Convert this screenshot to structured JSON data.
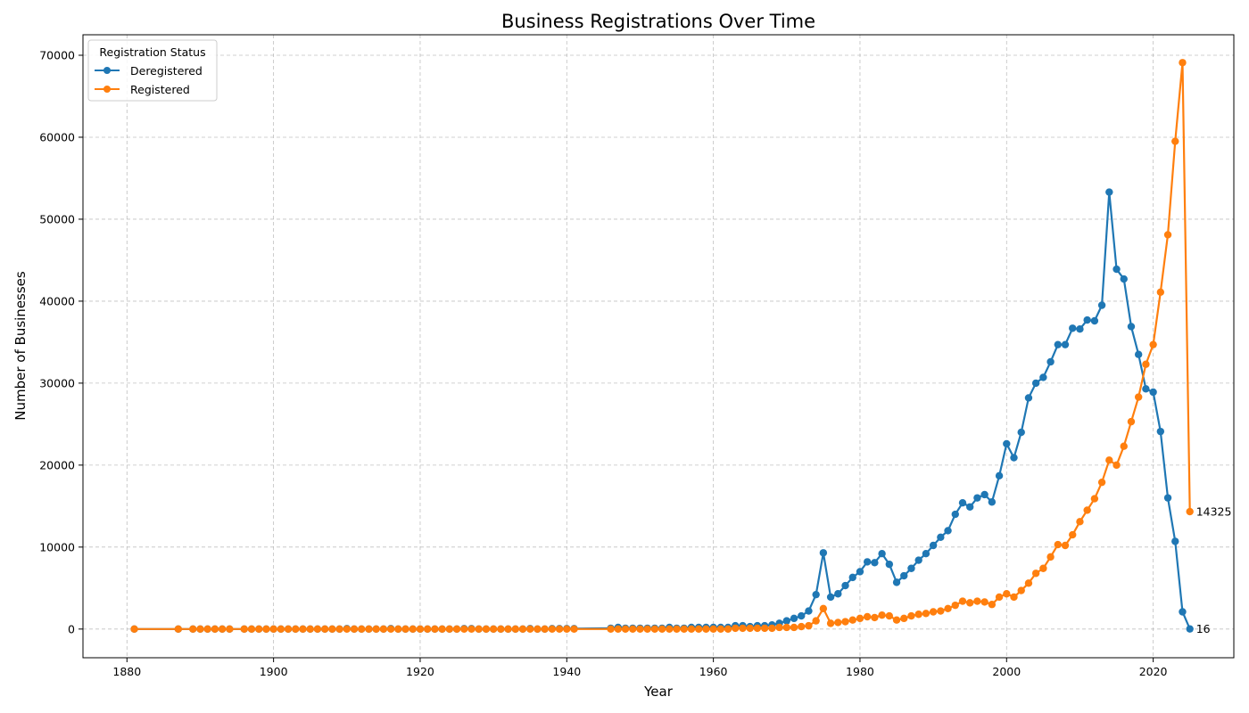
{
  "chart_data": {
    "type": "line",
    "title": "Business Registrations Over Time",
    "xlabel": "Year",
    "ylabel": "Number of Businesses",
    "xlim": [
      1874,
      2031
    ],
    "ylim": [
      -3500,
      72500
    ],
    "xticks": [
      1880,
      1900,
      1920,
      1940,
      1960,
      1980,
      2000,
      2020
    ],
    "yticks": [
      0,
      10000,
      20000,
      30000,
      40000,
      50000,
      60000,
      70000
    ],
    "grid": true,
    "legend": {
      "title": "Registration Status",
      "placement": "top-left"
    },
    "series": [
      {
        "name": "Deregistered",
        "color": "#1f77b4",
        "points": [
          [
            1881,
            0
          ],
          [
            1887,
            0
          ],
          [
            1889,
            0
          ],
          [
            1890,
            0
          ],
          [
            1891,
            0
          ],
          [
            1892,
            0
          ],
          [
            1893,
            0
          ],
          [
            1894,
            0
          ],
          [
            1896,
            0
          ],
          [
            1897,
            0
          ],
          [
            1898,
            0
          ],
          [
            1899,
            0
          ],
          [
            1900,
            0
          ],
          [
            1901,
            0
          ],
          [
            1902,
            0
          ],
          [
            1903,
            0
          ],
          [
            1904,
            0
          ],
          [
            1905,
            0
          ],
          [
            1906,
            0
          ],
          [
            1907,
            0
          ],
          [
            1908,
            0
          ],
          [
            1909,
            0
          ],
          [
            1910,
            50
          ],
          [
            1911,
            0
          ],
          [
            1912,
            0
          ],
          [
            1913,
            0
          ],
          [
            1914,
            0
          ],
          [
            1915,
            0
          ],
          [
            1916,
            50
          ],
          [
            1917,
            0
          ],
          [
            1918,
            0
          ],
          [
            1919,
            0
          ],
          [
            1920,
            0
          ],
          [
            1921,
            0
          ],
          [
            1922,
            0
          ],
          [
            1923,
            0
          ],
          [
            1924,
            0
          ],
          [
            1925,
            0
          ],
          [
            1926,
            50
          ],
          [
            1927,
            50
          ],
          [
            1928,
            0
          ],
          [
            1929,
            0
          ],
          [
            1930,
            0
          ],
          [
            1931,
            0
          ],
          [
            1932,
            0
          ],
          [
            1933,
            0
          ],
          [
            1934,
            0
          ],
          [
            1935,
            50
          ],
          [
            1936,
            0
          ],
          [
            1937,
            0
          ],
          [
            1938,
            50
          ],
          [
            1939,
            50
          ],
          [
            1940,
            50
          ],
          [
            1941,
            50
          ],
          [
            1946,
            100
          ],
          [
            1947,
            200
          ],
          [
            1948,
            100
          ],
          [
            1949,
            100
          ],
          [
            1950,
            100
          ],
          [
            1951,
            100
          ],
          [
            1952,
            100
          ],
          [
            1953,
            100
          ],
          [
            1954,
            200
          ],
          [
            1955,
            100
          ],
          [
            1956,
            100
          ],
          [
            1957,
            200
          ],
          [
            1958,
            200
          ],
          [
            1959,
            200
          ],
          [
            1960,
            200
          ],
          [
            1961,
            200
          ],
          [
            1962,
            200
          ],
          [
            1963,
            400
          ],
          [
            1964,
            400
          ],
          [
            1965,
            300
          ],
          [
            1966,
            400
          ],
          [
            1967,
            400
          ],
          [
            1968,
            500
          ],
          [
            1969,
            700
          ],
          [
            1970,
            1000
          ],
          [
            1971,
            1300
          ],
          [
            1972,
            1600
          ],
          [
            1973,
            2200
          ],
          [
            1974,
            4200
          ],
          [
            1975,
            9300
          ],
          [
            1976,
            3900
          ],
          [
            1977,
            4300
          ],
          [
            1978,
            5300
          ],
          [
            1979,
            6300
          ],
          [
            1980,
            7000
          ],
          [
            1981,
            8200
          ],
          [
            1982,
            8100
          ],
          [
            1983,
            9200
          ],
          [
            1984,
            7900
          ],
          [
            1985,
            5700
          ],
          [
            1986,
            6500
          ],
          [
            1987,
            7400
          ],
          [
            1988,
            8400
          ],
          [
            1989,
            9200
          ],
          [
            1990,
            10200
          ],
          [
            1991,
            11200
          ],
          [
            1992,
            12000
          ],
          [
            1993,
            14000
          ],
          [
            1994,
            15400
          ],
          [
            1995,
            14900
          ],
          [
            1996,
            16000
          ],
          [
            1997,
            16400
          ],
          [
            1998,
            15500
          ],
          [
            1999,
            18700
          ],
          [
            2000,
            22600
          ],
          [
            2001,
            20900
          ],
          [
            2002,
            24000
          ],
          [
            2003,
            28200
          ],
          [
            2004,
            30000
          ],
          [
            2005,
            30700
          ],
          [
            2006,
            32600
          ],
          [
            2007,
            34700
          ],
          [
            2008,
            34700
          ],
          [
            2009,
            36700
          ],
          [
            2010,
            36600
          ],
          [
            2011,
            37700
          ],
          [
            2012,
            37600
          ],
          [
            2013,
            39500
          ],
          [
            2014,
            53300
          ],
          [
            2015,
            43900
          ],
          [
            2016,
            42700
          ],
          [
            2017,
            36900
          ],
          [
            2018,
            33500
          ],
          [
            2019,
            29300
          ],
          [
            2020,
            28900
          ],
          [
            2021,
            24100
          ],
          [
            2022,
            16000
          ],
          [
            2023,
            10700
          ],
          [
            2024,
            2100
          ],
          [
            2025,
            16
          ]
        ]
      },
      {
        "name": "Registered",
        "color": "#ff7f0e",
        "points": [
          [
            1881,
            0
          ],
          [
            1887,
            0
          ],
          [
            1889,
            0
          ],
          [
            1890,
            0
          ],
          [
            1891,
            0
          ],
          [
            1892,
            0
          ],
          [
            1893,
            0
          ],
          [
            1894,
            0
          ],
          [
            1896,
            0
          ],
          [
            1897,
            0
          ],
          [
            1898,
            0
          ],
          [
            1899,
            0
          ],
          [
            1900,
            0
          ],
          [
            1901,
            0
          ],
          [
            1902,
            0
          ],
          [
            1903,
            0
          ],
          [
            1904,
            0
          ],
          [
            1905,
            0
          ],
          [
            1906,
            0
          ],
          [
            1907,
            0
          ],
          [
            1908,
            0
          ],
          [
            1909,
            0
          ],
          [
            1910,
            0
          ],
          [
            1911,
            0
          ],
          [
            1912,
            0
          ],
          [
            1913,
            0
          ],
          [
            1914,
            0
          ],
          [
            1915,
            0
          ],
          [
            1916,
            0
          ],
          [
            1917,
            0
          ],
          [
            1918,
            0
          ],
          [
            1919,
            0
          ],
          [
            1920,
            0
          ],
          [
            1921,
            0
          ],
          [
            1922,
            0
          ],
          [
            1923,
            0
          ],
          [
            1924,
            0
          ],
          [
            1925,
            0
          ],
          [
            1926,
            0
          ],
          [
            1927,
            0
          ],
          [
            1928,
            0
          ],
          [
            1929,
            0
          ],
          [
            1930,
            0
          ],
          [
            1931,
            0
          ],
          [
            1932,
            0
          ],
          [
            1933,
            0
          ],
          [
            1934,
            0
          ],
          [
            1935,
            0
          ],
          [
            1936,
            0
          ],
          [
            1937,
            0
          ],
          [
            1938,
            0
          ],
          [
            1939,
            0
          ],
          [
            1940,
            0
          ],
          [
            1941,
            0
          ],
          [
            1946,
            0
          ],
          [
            1947,
            0
          ],
          [
            1948,
            0
          ],
          [
            1949,
            0
          ],
          [
            1950,
            0
          ],
          [
            1951,
            0
          ],
          [
            1952,
            0
          ],
          [
            1953,
            0
          ],
          [
            1954,
            0
          ],
          [
            1955,
            0
          ],
          [
            1956,
            0
          ],
          [
            1957,
            0
          ],
          [
            1958,
            0
          ],
          [
            1959,
            0
          ],
          [
            1960,
            0
          ],
          [
            1961,
            0
          ],
          [
            1962,
            0
          ],
          [
            1963,
            100
          ],
          [
            1964,
            100
          ],
          [
            1965,
            100
          ],
          [
            1966,
            100
          ],
          [
            1967,
            100
          ],
          [
            1968,
            100
          ],
          [
            1969,
            200
          ],
          [
            1970,
            200
          ],
          [
            1971,
            200
          ],
          [
            1972,
            300
          ],
          [
            1973,
            400
          ],
          [
            1974,
            1000
          ],
          [
            1975,
            2500
          ],
          [
            1976,
            700
          ],
          [
            1977,
            800
          ],
          [
            1978,
            900
          ],
          [
            1979,
            1100
          ],
          [
            1980,
            1300
          ],
          [
            1981,
            1500
          ],
          [
            1982,
            1400
          ],
          [
            1983,
            1700
          ],
          [
            1984,
            1600
          ],
          [
            1985,
            1100
          ],
          [
            1986,
            1300
          ],
          [
            1987,
            1600
          ],
          [
            1988,
            1800
          ],
          [
            1989,
            1900
          ],
          [
            1990,
            2100
          ],
          [
            1991,
            2200
          ],
          [
            1992,
            2500
          ],
          [
            1993,
            2900
          ],
          [
            1994,
            3400
          ],
          [
            1995,
            3200
          ],
          [
            1996,
            3400
          ],
          [
            1997,
            3300
          ],
          [
            1998,
            3000
          ],
          [
            1999,
            3900
          ],
          [
            2000,
            4300
          ],
          [
            2001,
            3900
          ],
          [
            2002,
            4700
          ],
          [
            2003,
            5600
          ],
          [
            2004,
            6800
          ],
          [
            2005,
            7400
          ],
          [
            2006,
            8800
          ],
          [
            2007,
            10300
          ],
          [
            2008,
            10200
          ],
          [
            2009,
            11500
          ],
          [
            2010,
            13100
          ],
          [
            2011,
            14500
          ],
          [
            2012,
            15900
          ],
          [
            2013,
            17900
          ],
          [
            2014,
            20600
          ],
          [
            2015,
            20000
          ],
          [
            2016,
            22300
          ],
          [
            2017,
            25300
          ],
          [
            2018,
            28300
          ],
          [
            2019,
            32300
          ],
          [
            2020,
            34700
          ],
          [
            2021,
            41100
          ],
          [
            2022,
            48100
          ],
          [
            2023,
            59500
          ],
          [
            2024,
            69100
          ],
          [
            2025,
            14325
          ]
        ]
      }
    ],
    "annotations": [
      {
        "series": "Registered",
        "x": 2025,
        "y": 14325,
        "text": "14325"
      },
      {
        "series": "Deregistered",
        "x": 2025,
        "y": 16,
        "text": "16"
      }
    ]
  }
}
